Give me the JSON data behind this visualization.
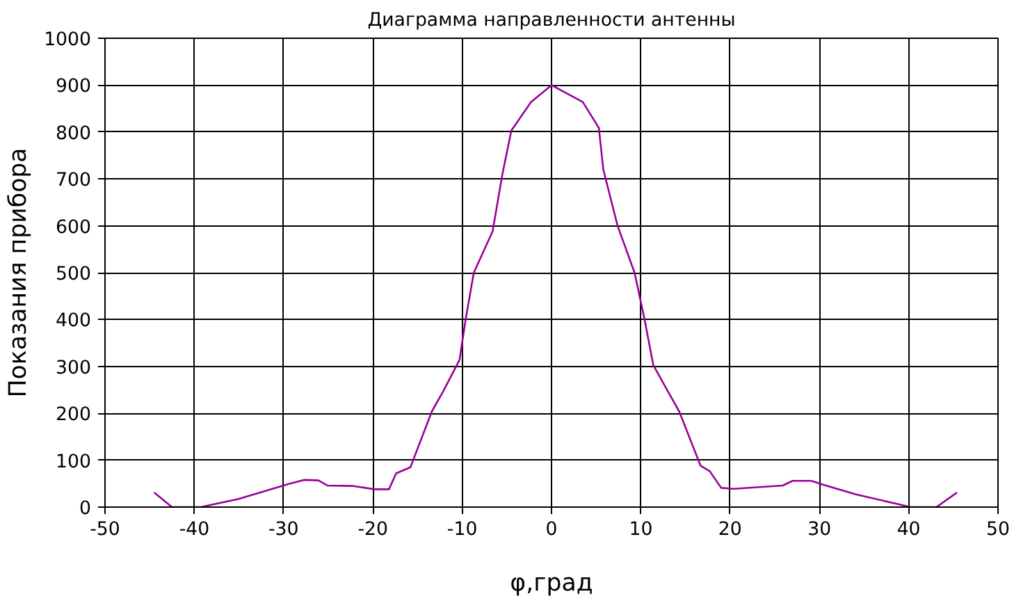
{
  "chart_data": {
    "type": "line",
    "title": "Диаграмма направленности антенны",
    "xlabel": "φ,град",
    "ylabel": "Показания прибора",
    "x": [
      -44.5,
      -42.5,
      -39.3,
      -35.1,
      -29.3,
      -27.7,
      -26.1,
      -25.1,
      -22.2,
      -19.8,
      -18.2,
      -17.4,
      -15.8,
      -13.4,
      -12.1,
      -10.3,
      -9.6,
      -8.7,
      -6.6,
      -5.5,
      -4.5,
      -2.3,
      0,
      3.5,
      5.3,
      5.8,
      7.4,
      9.3,
      10.4,
      11.4,
      13.0,
      14.3,
      16.7,
      17.7,
      19.0,
      20.4,
      25.9,
      27.0,
      29.1,
      30.4,
      34.1,
      38.9,
      40.2,
      43.1,
      45.4
    ],
    "series": [
      {
        "color": "#990099",
        "values": [
          31,
          0,
          0,
          17,
          50,
          58,
          57,
          46,
          45,
          38,
          38,
          72,
          85,
          204,
          248,
          314,
          402,
          500,
          588,
          710,
          803,
          864,
          900,
          864,
          809,
          720,
          600,
          500,
          402,
          303,
          248,
          204,
          88,
          77,
          41,
          39,
          46,
          56,
          56,
          48,
          27,
          6,
          0,
          0,
          31
        ]
      }
    ],
    "xlim": [
      -50,
      50
    ],
    "xticks": [
      -50,
      -40,
      -30,
      -20,
      -10,
      0,
      10,
      20,
      30,
      40,
      50
    ],
    "ylim": [
      0,
      1000
    ],
    "yticks": [
      0,
      100,
      200,
      300,
      400,
      500,
      600,
      700,
      800,
      900,
      1000
    ],
    "grid": true,
    "marker": "none",
    "line_style": "solid"
  }
}
